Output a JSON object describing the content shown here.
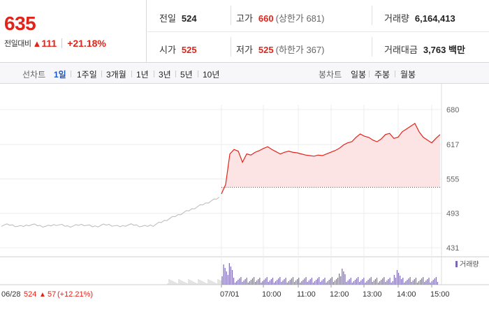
{
  "quote": {
    "price": "635",
    "change_label": "전일대비",
    "change_arrow": "▲",
    "change_value": "111",
    "change_pct": "+21.18%"
  },
  "stats": {
    "prev_close_label": "전일",
    "prev_close": "524",
    "high_label": "고가",
    "high": "660",
    "upper_limit": "(상한가 681)",
    "volume_label": "거래량",
    "volume": "6,164,413",
    "open_label": "시가",
    "open": "525",
    "low_label": "저가",
    "low": "525",
    "lower_limit": "(하한가 367)",
    "amount_label": "거래대금",
    "amount": "3,763 백만"
  },
  "period_tabs": {
    "line_label": "선차트",
    "line_tabs": [
      "1일",
      "1주일",
      "3개월",
      "1년",
      "3년",
      "5년",
      "10년"
    ],
    "active_line_tab": "1일",
    "candle_label": "봉차트",
    "candle_tabs": [
      "일봉",
      "주봉",
      "월봉"
    ]
  },
  "colors": {
    "up": "#e2231a",
    "volume": "#7b68b5",
    "prev_day": "#b9b9b9"
  },
  "chart_data": {
    "type": "line",
    "y_ticks": [
      "680",
      "617",
      "555",
      "493",
      "431"
    ],
    "ylim": [
      431,
      680
    ],
    "x_ticks": [
      "07/01",
      "10:00",
      "11:00",
      "12:00",
      "13:00",
      "14:00",
      "15:00"
    ],
    "reference_price": 524,
    "volume_legend": "거래량",
    "prev_day_label": "06/28",
    "prev_day_close": "524",
    "prev_day_arrow": "▲",
    "prev_day_change": "57",
    "prev_day_pct": "(+12.21%)",
    "series": [
      {
        "values": [
          528,
          545,
          600,
          608,
          605,
          585,
          600,
          598,
          603,
          606,
          610,
          613,
          608,
          604,
          600,
          603,
          605,
          603,
          602,
          600,
          598,
          597,
          596,
          598,
          597,
          600,
          603,
          606,
          610,
          616,
          620,
          622,
          630,
          636,
          632,
          630,
          625,
          622,
          627,
          635,
          637,
          628,
          630,
          640,
          645,
          650,
          655,
          640,
          630,
          625,
          620,
          628,
          635
        ]
      }
    ]
  }
}
